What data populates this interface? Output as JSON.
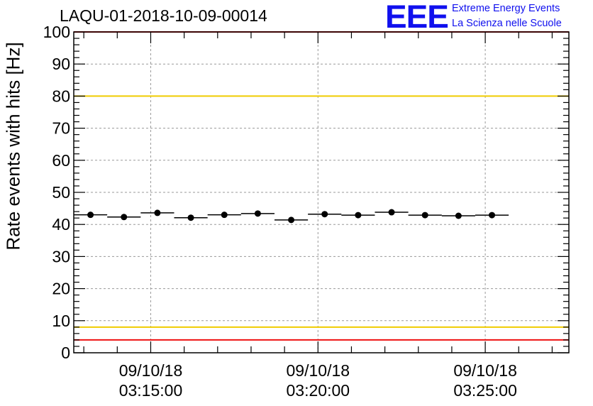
{
  "header": {
    "title": "LAQU-01-2018-10-09-00014",
    "logo_text": "EEE",
    "logo_line1": "Extreme Energy Events",
    "logo_line2": "La Scienza nelle Scuole"
  },
  "colors": {
    "logo": "#1010ee",
    "red_limit": "#ee1111",
    "yellow_limit": "#f0cc00",
    "grid": "#999999",
    "data": "#000000"
  },
  "chart_data": {
    "type": "scatter",
    "title": "LAQU-01-2018-10-09-00014",
    "xlabel": "",
    "ylabel": "Rate events with hits [Hz]",
    "ylim": [
      0,
      100
    ],
    "yticks": [
      0,
      10,
      20,
      30,
      40,
      50,
      60,
      70,
      80,
      90,
      100
    ],
    "xlim_min": [
      12.7,
      27.5
    ],
    "x_tick_labels": [
      {
        "x_min": 15,
        "date": "09/10/18",
        "time": "03:15:00"
      },
      {
        "x_min": 20,
        "date": "09/10/18",
        "time": "03:20:00"
      },
      {
        "x_min": 25,
        "date": "09/10/18",
        "time": "03:25:00"
      }
    ],
    "x_minor_tick_min": 1,
    "bin_width_min": 1,
    "series": [
      {
        "name": "rate",
        "x_min": [
          13.2,
          14.2,
          15.2,
          16.2,
          17.2,
          18.2,
          19.2,
          20.2,
          21.2,
          22.2,
          23.2,
          24.2,
          25.2
        ],
        "values": [
          43.0,
          42.3,
          43.6,
          42.1,
          43.0,
          43.4,
          41.4,
          43.2,
          42.9,
          43.8,
          42.9,
          42.7,
          42.9
        ]
      }
    ],
    "reference_lines": [
      {
        "name": "upper-red-limit",
        "y": 100,
        "color": "#ee1111"
      },
      {
        "name": "upper-yellow-limit",
        "y": 80,
        "color": "#f0cc00"
      },
      {
        "name": "lower-yellow-limit",
        "y": 8,
        "color": "#f0cc00"
      },
      {
        "name": "lower-red-limit",
        "y": 4,
        "color": "#ee1111"
      }
    ],
    "grid": true
  }
}
